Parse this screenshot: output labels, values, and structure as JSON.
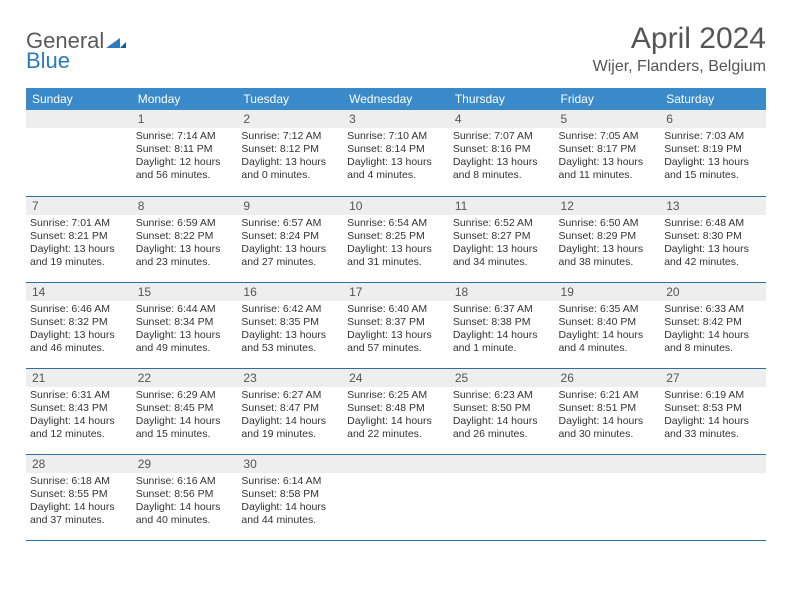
{
  "logo": {
    "part1": "General",
    "part2": "Blue"
  },
  "title": "April 2024",
  "location": "Wijer, Flanders, Belgium",
  "colors": {
    "header_bg": "#3a8ac9",
    "header_text": "#ffffff",
    "daynum_bg": "#eeeeee",
    "border": "#2b6fa3",
    "text": "#333333"
  },
  "day_headers": [
    "Sunday",
    "Monday",
    "Tuesday",
    "Wednesday",
    "Thursday",
    "Friday",
    "Saturday"
  ],
  "weeks": [
    [
      null,
      {
        "n": "1",
        "sr": "Sunrise: 7:14 AM",
        "ss": "Sunset: 8:11 PM",
        "dl1": "Daylight: 12 hours",
        "dl2": "and 56 minutes."
      },
      {
        "n": "2",
        "sr": "Sunrise: 7:12 AM",
        "ss": "Sunset: 8:12 PM",
        "dl1": "Daylight: 13 hours",
        "dl2": "and 0 minutes."
      },
      {
        "n": "3",
        "sr": "Sunrise: 7:10 AM",
        "ss": "Sunset: 8:14 PM",
        "dl1": "Daylight: 13 hours",
        "dl2": "and 4 minutes."
      },
      {
        "n": "4",
        "sr": "Sunrise: 7:07 AM",
        "ss": "Sunset: 8:16 PM",
        "dl1": "Daylight: 13 hours",
        "dl2": "and 8 minutes."
      },
      {
        "n": "5",
        "sr": "Sunrise: 7:05 AM",
        "ss": "Sunset: 8:17 PM",
        "dl1": "Daylight: 13 hours",
        "dl2": "and 11 minutes."
      },
      {
        "n": "6",
        "sr": "Sunrise: 7:03 AM",
        "ss": "Sunset: 8:19 PM",
        "dl1": "Daylight: 13 hours",
        "dl2": "and 15 minutes."
      }
    ],
    [
      {
        "n": "7",
        "sr": "Sunrise: 7:01 AM",
        "ss": "Sunset: 8:21 PM",
        "dl1": "Daylight: 13 hours",
        "dl2": "and 19 minutes."
      },
      {
        "n": "8",
        "sr": "Sunrise: 6:59 AM",
        "ss": "Sunset: 8:22 PM",
        "dl1": "Daylight: 13 hours",
        "dl2": "and 23 minutes."
      },
      {
        "n": "9",
        "sr": "Sunrise: 6:57 AM",
        "ss": "Sunset: 8:24 PM",
        "dl1": "Daylight: 13 hours",
        "dl2": "and 27 minutes."
      },
      {
        "n": "10",
        "sr": "Sunrise: 6:54 AM",
        "ss": "Sunset: 8:25 PM",
        "dl1": "Daylight: 13 hours",
        "dl2": "and 31 minutes."
      },
      {
        "n": "11",
        "sr": "Sunrise: 6:52 AM",
        "ss": "Sunset: 8:27 PM",
        "dl1": "Daylight: 13 hours",
        "dl2": "and 34 minutes."
      },
      {
        "n": "12",
        "sr": "Sunrise: 6:50 AM",
        "ss": "Sunset: 8:29 PM",
        "dl1": "Daylight: 13 hours",
        "dl2": "and 38 minutes."
      },
      {
        "n": "13",
        "sr": "Sunrise: 6:48 AM",
        "ss": "Sunset: 8:30 PM",
        "dl1": "Daylight: 13 hours",
        "dl2": "and 42 minutes."
      }
    ],
    [
      {
        "n": "14",
        "sr": "Sunrise: 6:46 AM",
        "ss": "Sunset: 8:32 PM",
        "dl1": "Daylight: 13 hours",
        "dl2": "and 46 minutes."
      },
      {
        "n": "15",
        "sr": "Sunrise: 6:44 AM",
        "ss": "Sunset: 8:34 PM",
        "dl1": "Daylight: 13 hours",
        "dl2": "and 49 minutes."
      },
      {
        "n": "16",
        "sr": "Sunrise: 6:42 AM",
        "ss": "Sunset: 8:35 PM",
        "dl1": "Daylight: 13 hours",
        "dl2": "and 53 minutes."
      },
      {
        "n": "17",
        "sr": "Sunrise: 6:40 AM",
        "ss": "Sunset: 8:37 PM",
        "dl1": "Daylight: 13 hours",
        "dl2": "and 57 minutes."
      },
      {
        "n": "18",
        "sr": "Sunrise: 6:37 AM",
        "ss": "Sunset: 8:38 PM",
        "dl1": "Daylight: 14 hours",
        "dl2": "and 1 minute."
      },
      {
        "n": "19",
        "sr": "Sunrise: 6:35 AM",
        "ss": "Sunset: 8:40 PM",
        "dl1": "Daylight: 14 hours",
        "dl2": "and 4 minutes."
      },
      {
        "n": "20",
        "sr": "Sunrise: 6:33 AM",
        "ss": "Sunset: 8:42 PM",
        "dl1": "Daylight: 14 hours",
        "dl2": "and 8 minutes."
      }
    ],
    [
      {
        "n": "21",
        "sr": "Sunrise: 6:31 AM",
        "ss": "Sunset: 8:43 PM",
        "dl1": "Daylight: 14 hours",
        "dl2": "and 12 minutes."
      },
      {
        "n": "22",
        "sr": "Sunrise: 6:29 AM",
        "ss": "Sunset: 8:45 PM",
        "dl1": "Daylight: 14 hours",
        "dl2": "and 15 minutes."
      },
      {
        "n": "23",
        "sr": "Sunrise: 6:27 AM",
        "ss": "Sunset: 8:47 PM",
        "dl1": "Daylight: 14 hours",
        "dl2": "and 19 minutes."
      },
      {
        "n": "24",
        "sr": "Sunrise: 6:25 AM",
        "ss": "Sunset: 8:48 PM",
        "dl1": "Daylight: 14 hours",
        "dl2": "and 22 minutes."
      },
      {
        "n": "25",
        "sr": "Sunrise: 6:23 AM",
        "ss": "Sunset: 8:50 PM",
        "dl1": "Daylight: 14 hours",
        "dl2": "and 26 minutes."
      },
      {
        "n": "26",
        "sr": "Sunrise: 6:21 AM",
        "ss": "Sunset: 8:51 PM",
        "dl1": "Daylight: 14 hours",
        "dl2": "and 30 minutes."
      },
      {
        "n": "27",
        "sr": "Sunrise: 6:19 AM",
        "ss": "Sunset: 8:53 PM",
        "dl1": "Daylight: 14 hours",
        "dl2": "and 33 minutes."
      }
    ],
    [
      {
        "n": "28",
        "sr": "Sunrise: 6:18 AM",
        "ss": "Sunset: 8:55 PM",
        "dl1": "Daylight: 14 hours",
        "dl2": "and 37 minutes."
      },
      {
        "n": "29",
        "sr": "Sunrise: 6:16 AM",
        "ss": "Sunset: 8:56 PM",
        "dl1": "Daylight: 14 hours",
        "dl2": "and 40 minutes."
      },
      {
        "n": "30",
        "sr": "Sunrise: 6:14 AM",
        "ss": "Sunset: 8:58 PM",
        "dl1": "Daylight: 14 hours",
        "dl2": "and 44 minutes."
      },
      null,
      null,
      null,
      null
    ]
  ]
}
